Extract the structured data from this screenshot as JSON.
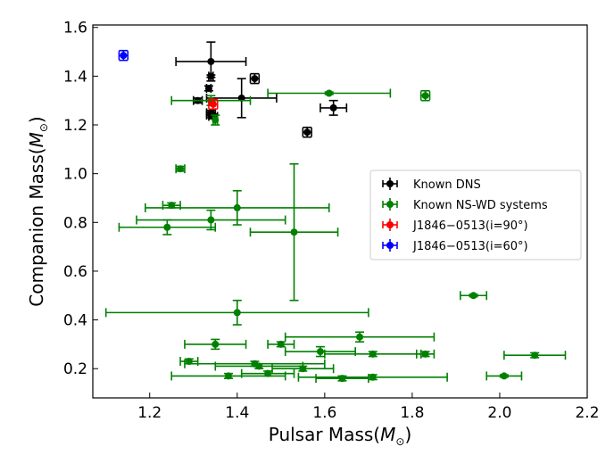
{
  "chart_data": {
    "type": "scatter",
    "xlabel": "Pulsar Mass",
    "ylabel": "Companion Mass",
    "xunit": "M",
    "yunit": "M",
    "unit_subscript": "⊙",
    "xlim": [
      1.07,
      2.2
    ],
    "ylim": [
      0.08,
      1.61
    ],
    "xticks": [
      1.2,
      1.4,
      1.6,
      1.8,
      2.0,
      2.2
    ],
    "xtick_labels": [
      "1.2",
      "1.4",
      "1.6",
      "1.8",
      "2.0",
      "2.2"
    ],
    "yticks": [
      0.2,
      0.4,
      0.6,
      0.8,
      1.0,
      1.2,
      1.4,
      1.6
    ],
    "ytick_labels": [
      "0.2",
      "0.4",
      "0.6",
      "0.8",
      "1.0",
      "1.2",
      "1.4",
      "1.6"
    ],
    "grid": false,
    "legend": {
      "placement": "center-right",
      "entries": [
        "Known DNS",
        "Known NS-WD systems",
        "J1846−0513(i=90°)",
        "J1846−0513(i=60°)"
      ]
    },
    "series": [
      {
        "name": "Known DNS",
        "color": "#000000",
        "points": [
          {
            "x": 1.34,
            "y": 1.46,
            "xerr": 0.08,
            "yerr": 0.08
          },
          {
            "x": 1.34,
            "y": 1.4,
            "xerr": 0.005,
            "yerr": 0.005
          },
          {
            "x": 1.44,
            "y": 1.39,
            "xerr": 0.01,
            "yerr": 0.02
          },
          {
            "x": 1.335,
            "y": 1.35,
            "xerr": 0.005,
            "yerr": 0.01
          },
          {
            "x": 1.41,
            "y": 1.31,
            "xerr": 0.08,
            "yerr": 0.08
          },
          {
            "x": 1.31,
            "y": 1.3,
            "xerr": 0.01,
            "yerr": 0.01
          },
          {
            "x": 1.62,
            "y": 1.27,
            "xerr": 0.03,
            "yerr": 0.03
          },
          {
            "x": 1.34,
            "y": 1.25,
            "xerr": 0.01,
            "yerr": 0.01
          },
          {
            "x": 1.34,
            "y": 1.24,
            "xerr": 0.01,
            "yerr": 0.01
          },
          {
            "x": 1.345,
            "y": 1.235,
            "xerr": 0.01,
            "yerr": 0.01
          },
          {
            "x": 1.56,
            "y": 1.17,
            "xerr": 0.01,
            "yerr": 0.02
          }
        ]
      },
      {
        "name": "Known NS-WD systems",
        "color": "#008000",
        "points": [
          {
            "x": 1.61,
            "y": 1.33,
            "xerr": 0.14,
            "yerr": 0.005
          },
          {
            "x": 1.83,
            "y": 1.32,
            "xerr": 0.01,
            "yerr": 0.02
          },
          {
            "x": 1.34,
            "y": 1.3,
            "xerr": 0.09,
            "yerr": 0.02
          },
          {
            "x": 1.35,
            "y": 1.22,
            "xerr": 0.005,
            "yerr": 0.02
          },
          {
            "x": 1.27,
            "y": 1.02,
            "xerr": 0.01,
            "yerr": 0.01
          },
          {
            "x": 1.25,
            "y": 0.87,
            "xerr": 0.02,
            "yerr": 0.01
          },
          {
            "x": 1.4,
            "y": 0.86,
            "xerr": 0.21,
            "yerr": 0.07
          },
          {
            "x": 1.34,
            "y": 0.81,
            "xerr": 0.17,
            "yerr": 0.04
          },
          {
            "x": 1.24,
            "y": 0.78,
            "xerr": 0.11,
            "yerr": 0.03
          },
          {
            "x": 1.53,
            "y": 0.76,
            "xerr": 0.1,
            "yerr": 0.28
          },
          {
            "x": 1.4,
            "y": 0.43,
            "xerr": 0.3,
            "yerr": 0.05
          },
          {
            "x": 1.94,
            "y": 0.5,
            "xerr": 0.03,
            "yerr": 0.005
          },
          {
            "x": 1.68,
            "y": 0.33,
            "xerr": 0.17,
            "yerr": 0.02
          },
          {
            "x": 1.5,
            "y": 0.3,
            "xerr": 0.03,
            "yerr": 0.01
          },
          {
            "x": 1.35,
            "y": 0.3,
            "xerr": 0.07,
            "yerr": 0.02
          },
          {
            "x": 1.59,
            "y": 0.27,
            "xerr": 0.08,
            "yerr": 0.02
          },
          {
            "x": 1.71,
            "y": 0.26,
            "xerr": 0.11,
            "yerr": 0.01
          },
          {
            "x": 1.83,
            "y": 0.26,
            "xerr": 0.02,
            "yerr": 0.01
          },
          {
            "x": 2.08,
            "y": 0.255,
            "xerr": 0.07,
            "yerr": 0.01
          },
          {
            "x": 1.29,
            "y": 0.23,
            "xerr": 0.02,
            "yerr": 0.01
          },
          {
            "x": 1.44,
            "y": 0.22,
            "xerr": 0.16,
            "yerr": 0.01
          },
          {
            "x": 1.45,
            "y": 0.21,
            "xerr": 0.1,
            "yerr": 0.01
          },
          {
            "x": 1.55,
            "y": 0.2,
            "xerr": 0.07,
            "yerr": 0.01
          },
          {
            "x": 1.38,
            "y": 0.17,
            "xerr": 0.13,
            "yerr": 0.01
          },
          {
            "x": 1.47,
            "y": 0.18,
            "xerr": 0.06,
            "yerr": 0.01
          },
          {
            "x": 1.64,
            "y": 0.16,
            "xerr": 0.06,
            "yerr": 0.01
          },
          {
            "x": 1.71,
            "y": 0.165,
            "xerr": 0.17,
            "yerr": 0.01
          },
          {
            "x": 2.01,
            "y": 0.17,
            "xerr": 0.04,
            "yerr": 0.005
          }
        ]
      },
      {
        "name": "J1846−0513(i=90°)",
        "color": "#ff0000",
        "points": [
          {
            "x": 1.345,
            "y": 1.285,
            "xerr": 0.01,
            "yerr": 0.02
          }
        ]
      },
      {
        "name": "J1846−0513(i=60°)",
        "color": "#0000ff",
        "points": [
          {
            "x": 1.14,
            "y": 1.485,
            "xerr": 0.01,
            "yerr": 0.02
          }
        ]
      }
    ]
  }
}
